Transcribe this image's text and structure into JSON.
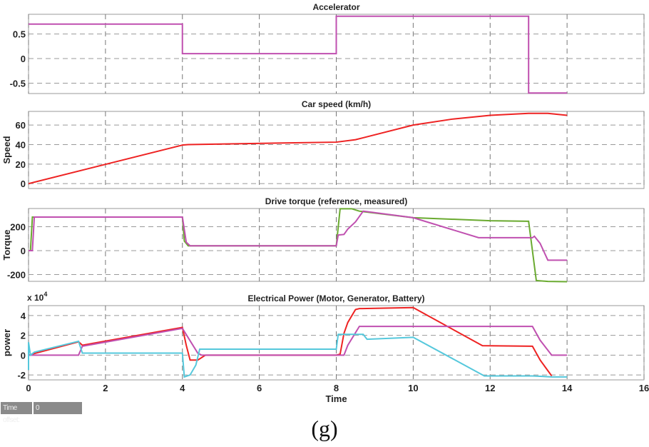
{
  "chart_data": [
    {
      "type": "line",
      "title": "Accelerator",
      "ylabel": "",
      "xlim": [
        0,
        16
      ],
      "ylim": [
        -0.71,
        0.9
      ],
      "yticks": [
        0.5,
        0,
        -0.5
      ],
      "ytick_labels": [
        "0.5",
        "0",
        "-0.5"
      ],
      "grid": true,
      "series": [
        {
          "color": "#c050b0",
          "x": [
            0,
            4,
            4,
            8,
            8,
            13,
            13,
            14
          ],
          "y": [
            0.7,
            0.7,
            0.1,
            0.1,
            0.86,
            0.86,
            -0.7,
            -0.7
          ]
        }
      ]
    },
    {
      "type": "line",
      "title": "Car speed (km/h)",
      "ylabel": "Speed",
      "xlim": [
        0,
        16
      ],
      "ylim": [
        -5,
        74
      ],
      "yticks": [
        60,
        40,
        20,
        0
      ],
      "ytick_labels": [
        "60",
        "40",
        "20",
        "0"
      ],
      "grid": true,
      "series": [
        {
          "color": "#ee2222",
          "x": [
            0,
            4,
            4.15,
            8,
            8.5,
            9,
            10,
            11,
            12,
            13,
            13.5,
            14
          ],
          "y": [
            0,
            39.5,
            40,
            42.5,
            45,
            50,
            60,
            66,
            70,
            72,
            72,
            70
          ]
        }
      ]
    },
    {
      "type": "line",
      "title": "Drive torque (reference, measured)",
      "ylabel": "Torque",
      "xlim": [
        0,
        16
      ],
      "ylim": [
        -257,
        352
      ],
      "yticks": [
        200,
        0,
        -200
      ],
      "ytick_labels": [
        "200",
        "0",
        "-200"
      ],
      "grid": true,
      "series": [
        {
          "color": "#6aaa30",
          "x": [
            0,
            0.05,
            0.1,
            4,
            4.05,
            4.15,
            8,
            8.1,
            8.4,
            8.6,
            10,
            12,
            13,
            13.2,
            13.5,
            14
          ],
          "y": [
            0,
            0,
            280,
            280,
            80,
            40,
            40,
            350,
            350,
            330,
            275,
            250,
            245,
            -250,
            -258,
            -260
          ]
        },
        {
          "color": "#c050b0",
          "x": [
            0,
            0.1,
            0.15,
            4,
            4.1,
            4.2,
            8,
            8.05,
            8.2,
            8.3,
            8.5,
            8.7,
            10,
            11.7,
            13.1,
            13.15,
            13.3,
            13.5,
            14
          ],
          "y": [
            0,
            0,
            280,
            280,
            70,
            40,
            40,
            130,
            135,
            180,
            240,
            330,
            275,
            108,
            108,
            120,
            60,
            -80,
            -80
          ]
        }
      ]
    },
    {
      "type": "line",
      "title": "Electrical Power (Motor, Generator, Battery)",
      "ylabel": "power",
      "yscale_label": "x 10",
      "yscale_exp": "4",
      "xlabel": "Time",
      "xlim": [
        0,
        16
      ],
      "ylim": [
        -2.5,
        5
      ],
      "yticks": [
        4,
        2,
        0,
        -2
      ],
      "ytick_labels": [
        "4",
        "2",
        "0",
        "-2"
      ],
      "xticks": [
        0,
        2,
        4,
        6,
        8,
        10,
        12,
        14,
        16
      ],
      "xtick_labels": [
        "0",
        "2",
        "4",
        "6",
        "8",
        "10",
        "12",
        "14",
        "16"
      ],
      "grid": true,
      "series": [
        {
          "color": "#ee2222",
          "x": [
            0,
            1.3,
            1.4,
            4,
            4.1,
            4.2,
            4.4,
            4.6,
            8,
            8.1,
            8.2,
            8.3,
            8.5,
            8.6,
            10,
            11.8,
            13.1,
            13.3,
            13.6
          ],
          "y": [
            0,
            1.35,
            1.0,
            2.8,
            1.0,
            -0.5,
            -0.5,
            0,
            0,
            0.1,
            2.2,
            3.3,
            4.6,
            4.7,
            4.8,
            0.95,
            0.9,
            -0.5,
            -2.1
          ]
        },
        {
          "color": "#c050b0",
          "x": [
            0,
            1.3,
            1.4,
            4,
            4.4,
            4.5,
            8,
            8.2,
            8.3,
            8.6,
            13.1,
            13.3,
            13.6,
            14
          ],
          "y": [
            0,
            0,
            0.9,
            2.7,
            0.2,
            0,
            0,
            0,
            1,
            2.9,
            2.9,
            1.5,
            0,
            0
          ]
        },
        {
          "color": "#55c8dc",
          "x": [
            0,
            0,
            0.05,
            0.15,
            1.3,
            1.4,
            4,
            4.05,
            4.2,
            4.35,
            4.45,
            8,
            8.05,
            8.7,
            8.8,
            10,
            11.85,
            13.1,
            13.6,
            14
          ],
          "y": [
            -1.5,
            1.3,
            0,
            0.3,
            1.4,
            0.2,
            0.2,
            -2.2,
            -2.0,
            -1,
            0.6,
            0.6,
            2.1,
            2.1,
            1.6,
            1.8,
            -2.1,
            -2.1,
            -2.2,
            -2.2
          ]
        }
      ]
    }
  ],
  "controls": {
    "time_offset_label": "Time offset:",
    "time_offset_value": "0"
  },
  "caption": "(g)"
}
